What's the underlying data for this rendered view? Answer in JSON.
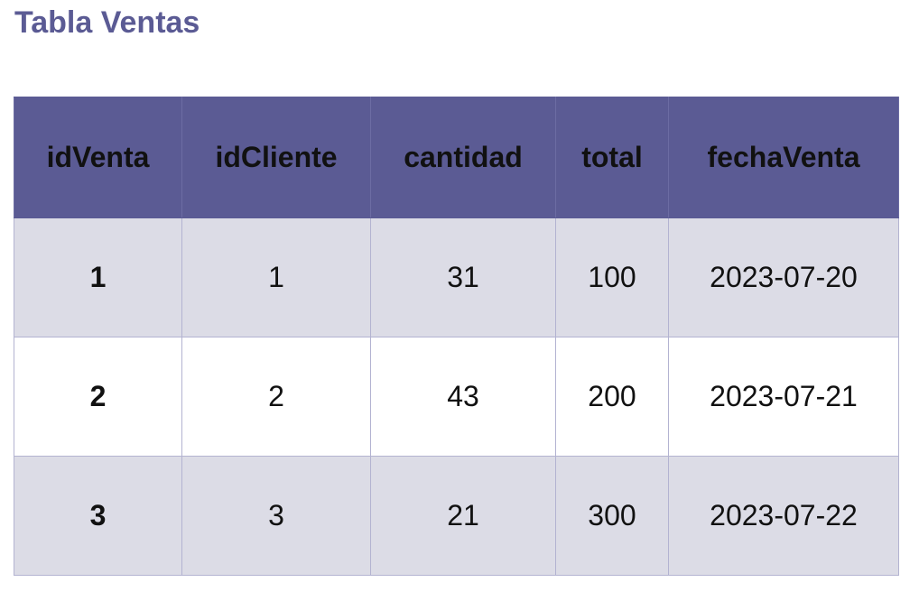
{
  "title": "Tabla Ventas",
  "colors": {
    "accent": "#5b5b94",
    "row_shade": "#dcdce6",
    "border": "#b3b3d1"
  },
  "table": {
    "headers": [
      "idVenta",
      "idCliente",
      "cantidad",
      "total",
      "fechaVenta"
    ],
    "rows": [
      [
        "1",
        "1",
        "31",
        "100",
        "2023-07-20"
      ],
      [
        "2",
        "2",
        "43",
        "200",
        "2023-07-21"
      ],
      [
        "3",
        "3",
        "21",
        "300",
        "2023-07-22"
      ]
    ]
  }
}
